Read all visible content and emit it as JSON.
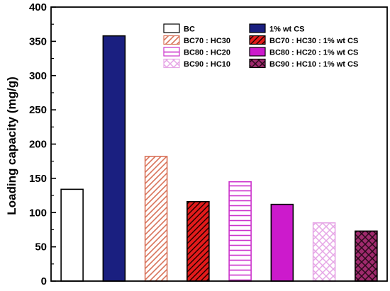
{
  "chart_data": {
    "type": "bar",
    "title": "",
    "xlabel": "",
    "ylabel": "Loading capacity (mg/g)",
    "ylim": [
      0,
      400
    ],
    "yticks": [
      0,
      50,
      100,
      150,
      200,
      250,
      300,
      350,
      400
    ],
    "grid": false,
    "legend_position": "top-right",
    "series": [
      {
        "name": "BC",
        "value": 134,
        "fill": "#ffffff",
        "stroke": "#000000",
        "pattern": "none"
      },
      {
        "name": "1% wt CS",
        "value": 358,
        "fill": "#1a1f80",
        "stroke": "#000000",
        "pattern": "none"
      },
      {
        "name": "BC70 : HC30",
        "value": 182,
        "fill": "#ffffff",
        "stroke": "#d9735a",
        "pattern": "diagonal"
      },
      {
        "name": "BC70 : HC30 : 1% wt CS",
        "value": 116,
        "fill": "#e31b1b",
        "stroke": "#000000",
        "pattern": "diagonal"
      },
      {
        "name": "BC80 : HC20",
        "value": 145,
        "fill": "#ffffff",
        "stroke": "#cc33cc",
        "pattern": "horizontal"
      },
      {
        "name": "BC80 : HC20 : 1% wt CS",
        "value": 112,
        "fill": "#cc1acc",
        "stroke": "#000000",
        "pattern": "none"
      },
      {
        "name": "BC90 : HC10",
        "value": 85,
        "fill": "#ffffff",
        "stroke": "#e6a6e6",
        "pattern": "crosshatch"
      },
      {
        "name": "BC90 : HC10 : 1% wt CS",
        "value": 73,
        "fill": "#a02a6e",
        "stroke": "#000000",
        "pattern": "crosshatch"
      }
    ]
  }
}
